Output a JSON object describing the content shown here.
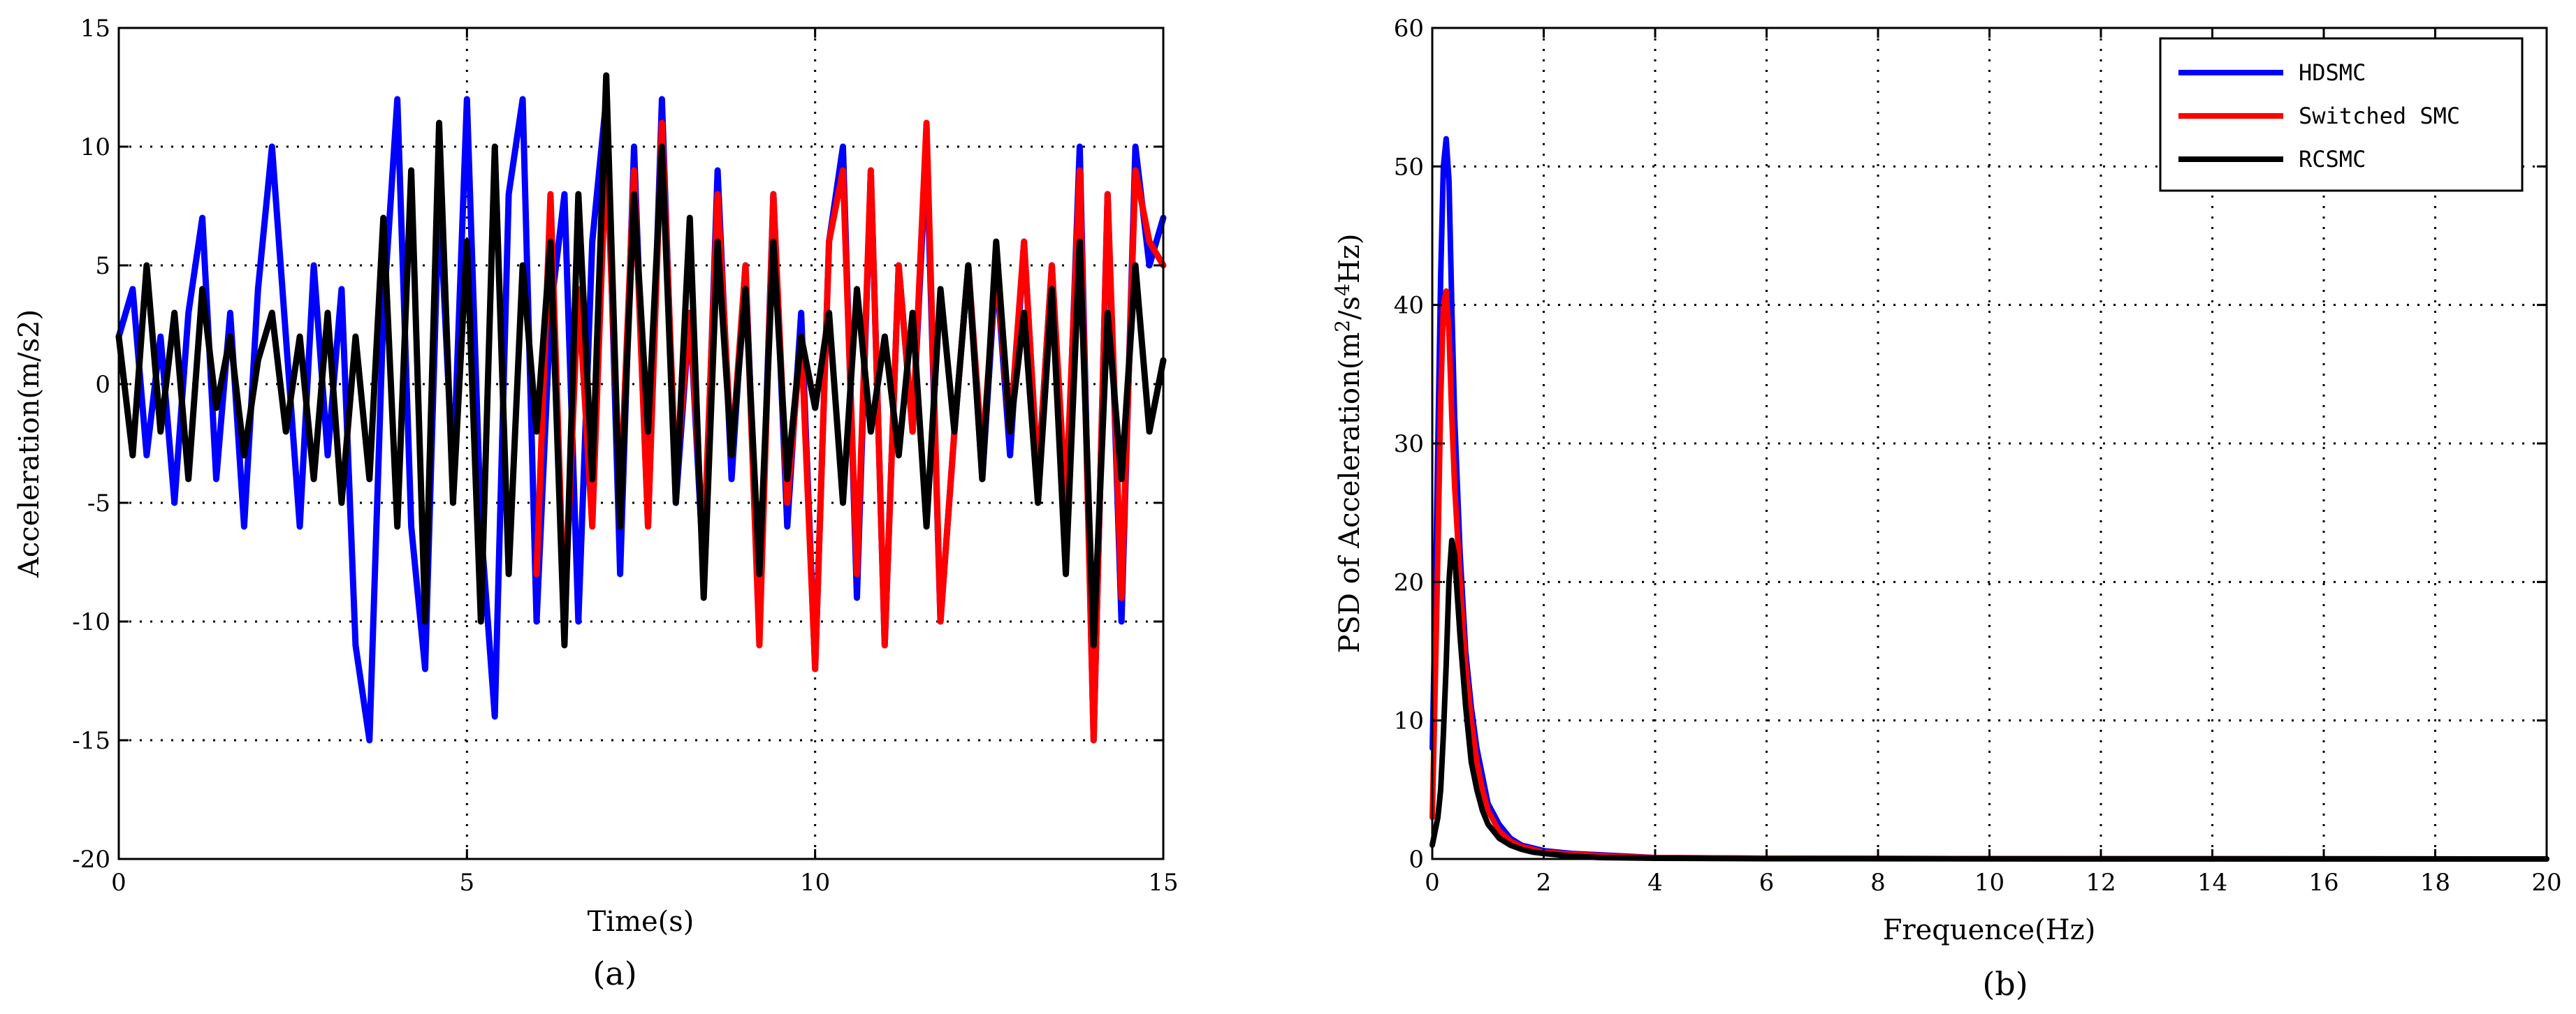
{
  "chart_data": [
    {
      "id": "a",
      "type": "line",
      "caption": "(a)",
      "xlabel": "Time(s)",
      "ylabel": "Acceleration(m/s2)",
      "xlim": [
        0,
        15
      ],
      "ylim": [
        -20,
        15
      ],
      "xticks": [
        0,
        5,
        10,
        15
      ],
      "yticks": [
        -20,
        -15,
        -10,
        -5,
        0,
        5,
        10,
        15
      ],
      "grid": true,
      "series": [
        {
          "name": "HDSMC",
          "color": "#0000ff",
          "x": [
            0,
            0.2,
            0.4,
            0.6,
            0.8,
            1.0,
            1.2,
            1.4,
            1.6,
            1.8,
            2.0,
            2.2,
            2.4,
            2.6,
            2.8,
            3.0,
            3.2,
            3.4,
            3.6,
            3.8,
            4.0,
            4.2,
            4.4,
            4.6,
            4.8,
            5.0,
            5.2,
            5.4,
            5.6,
            5.8,
            6.0,
            6.2,
            6.4,
            6.6,
            6.8,
            7.0,
            7.2,
            7.4,
            7.6,
            7.8,
            8.0,
            8.2,
            8.4,
            8.6,
            8.8,
            9.0,
            9.2,
            9.4,
            9.6,
            9.8,
            10.0,
            10.2,
            10.4,
            10.6,
            10.8,
            11.0,
            11.2,
            11.4,
            11.6,
            11.8,
            12.0,
            12.2,
            12.4,
            12.6,
            12.8,
            13.0,
            13.2,
            13.4,
            13.6,
            13.8,
            14.0,
            14.2,
            14.4,
            14.6,
            14.8,
            15.0
          ],
          "y": [
            2,
            4,
            -3,
            2,
            -5,
            3,
            7,
            -4,
            3,
            -6,
            4,
            10,
            2,
            -6,
            5,
            -3,
            4,
            -11,
            -15,
            3,
            12,
            -6,
            -12,
            8,
            -4,
            12,
            -6,
            -14,
            8,
            12,
            -10,
            3,
            8,
            -10,
            6,
            12,
            -8,
            10,
            -6,
            12,
            -5,
            3,
            -8,
            9,
            -4,
            5,
            -10,
            8,
            -6,
            3,
            -12,
            6,
            10,
            -9,
            9,
            -11,
            5,
            -2,
            10,
            -10,
            -2,
            5,
            -4,
            5,
            -3,
            6,
            -4,
            5,
            -6,
            10,
            -15,
            8,
            -10,
            10,
            5,
            7
          ]
        },
        {
          "name": "Switched SMC",
          "color": "#ff0000",
          "x": [
            6.0,
            6.2,
            6.4,
            6.6,
            6.8,
            7.0,
            7.2,
            7.4,
            7.6,
            7.8,
            8.0,
            8.2,
            8.4,
            8.6,
            8.8,
            9.0,
            9.2,
            9.4,
            9.6,
            9.8,
            10.0,
            10.2,
            10.4,
            10.6,
            10.8,
            11.0,
            11.2,
            11.4,
            11.6,
            11.8,
            12.0,
            12.2,
            12.4,
            12.6,
            12.8,
            13.0,
            13.2,
            13.4,
            13.6,
            13.8,
            14.0,
            14.2,
            14.4,
            14.6,
            14.8,
            15.0
          ],
          "y": [
            -8,
            8,
            -10,
            4,
            -6,
            10,
            -5,
            9,
            -6,
            11,
            -4,
            3,
            -7,
            8,
            -3,
            5,
            -11,
            8,
            -5,
            2,
            -12,
            6,
            9,
            -8,
            9,
            -11,
            5,
            -2,
            11,
            -10,
            -2,
            5,
            -3,
            5,
            -2,
            6,
            -4,
            5,
            -5,
            9,
            -15,
            8,
            -9,
            9,
            6,
            5
          ]
        },
        {
          "name": "RCSMC",
          "color": "#000000",
          "x": [
            0,
            0.2,
            0.4,
            0.6,
            0.8,
            1.0,
            1.2,
            1.4,
            1.6,
            1.8,
            2.0,
            2.2,
            2.4,
            2.6,
            2.8,
            3.0,
            3.2,
            3.4,
            3.6,
            3.8,
            4.0,
            4.2,
            4.4,
            4.6,
            4.8,
            5.0,
            5.2,
            5.4,
            5.6,
            5.8,
            6.0,
            6.2,
            6.4,
            6.6,
            6.8,
            7.0,
            7.2,
            7.4,
            7.6,
            7.8,
            8.0,
            8.2,
            8.4,
            8.6,
            8.8,
            9.0,
            9.2,
            9.4,
            9.6,
            9.8,
            10.0,
            10.2,
            10.4,
            10.6,
            10.8,
            11.0,
            11.2,
            11.4,
            11.6,
            11.8,
            12.0,
            12.2,
            12.4,
            12.6,
            12.8,
            13.0,
            13.2,
            13.4,
            13.6,
            13.8,
            14.0,
            14.2,
            14.4,
            14.6,
            14.8,
            15.0
          ],
          "y": [
            2,
            -3,
            5,
            -2,
            3,
            -4,
            4,
            -1,
            2,
            -3,
            1,
            3,
            -2,
            2,
            -4,
            3,
            -5,
            2,
            -4,
            7,
            -6,
            9,
            -10,
            11,
            -5,
            6,
            -10,
            10,
            -8,
            5,
            -2,
            6,
            -11,
            8,
            -4,
            13,
            -6,
            8,
            -2,
            10,
            -5,
            7,
            -9,
            6,
            -3,
            4,
            -8,
            6,
            -4,
            2,
            -1,
            3,
            -5,
            4,
            -2,
            2,
            -3,
            3,
            -6,
            4,
            -2,
            5,
            -4,
            6,
            -2,
            3,
            -5,
            4,
            -8,
            6,
            -11,
            3,
            -4,
            5,
            -2,
            1
          ]
        }
      ]
    },
    {
      "id": "b",
      "type": "line",
      "caption": "(b)",
      "xlabel": "Frequence(Hz)",
      "ylabel_prefix": "PSD of Acceleration(m",
      "ylabel_sup1": "2",
      "ylabel_mid": "/s",
      "ylabel_sup2": "4",
      "ylabel_suffix": "Hz)",
      "xlim": [
        0,
        20
      ],
      "ylim": [
        0,
        60
      ],
      "xticks": [
        0,
        2,
        4,
        6,
        8,
        10,
        12,
        14,
        16,
        18,
        20
      ],
      "yticks": [
        0,
        10,
        20,
        30,
        40,
        50,
        60
      ],
      "grid": true,
      "legend": "top-right",
      "series": [
        {
          "name": "HDSMC",
          "color": "#0000ff",
          "x": [
            0,
            0.05,
            0.1,
            0.15,
            0.2,
            0.25,
            0.3,
            0.35,
            0.4,
            0.5,
            0.6,
            0.7,
            0.8,
            0.9,
            1.0,
            1.2,
            1.4,
            1.6,
            1.8,
            2.0,
            2.5,
            3.0,
            3.5,
            4.0,
            6,
            10,
            20
          ],
          "y": [
            8,
            18,
            30,
            42,
            50,
            52,
            49,
            40,
            32,
            22,
            15,
            11,
            8,
            6,
            4,
            2.5,
            1.5,
            1,
            0.8,
            0.6,
            0.4,
            0.3,
            0.2,
            0.1,
            0.05,
            0.02,
            0
          ]
        },
        {
          "name": "Switched SMC",
          "color": "#ff0000",
          "x": [
            0,
            0.05,
            0.1,
            0.15,
            0.2,
            0.25,
            0.3,
            0.35,
            0.4,
            0.5,
            0.6,
            0.7,
            0.8,
            0.9,
            1.0,
            1.2,
            1.4,
            1.6,
            1.8,
            2.0,
            2.5,
            3.0,
            3.5,
            4.0,
            6,
            10,
            20
          ],
          "y": [
            3,
            12,
            22,
            33,
            40,
            41,
            38,
            32,
            27,
            20,
            14,
            10,
            7,
            5,
            3.5,
            2,
            1.3,
            0.9,
            0.7,
            0.5,
            0.35,
            0.25,
            0.15,
            0.1,
            0.05,
            0.02,
            0
          ]
        },
        {
          "name": "RCSMC",
          "color": "#000000",
          "x": [
            0,
            0.05,
            0.1,
            0.15,
            0.2,
            0.25,
            0.3,
            0.35,
            0.4,
            0.45,
            0.5,
            0.6,
            0.7,
            0.8,
            0.9,
            1.0,
            1.2,
            1.4,
            1.6,
            1.8,
            2.0,
            2.5,
            3.0,
            4.0,
            6,
            10,
            20
          ],
          "y": [
            1,
            2,
            3,
            5,
            9,
            14,
            20,
            23,
            22,
            19,
            16,
            11,
            7,
            5,
            3.5,
            2.5,
            1.5,
            1,
            0.7,
            0.5,
            0.4,
            0.2,
            0.1,
            0.05,
            0.02,
            0.01,
            0
          ]
        }
      ]
    }
  ]
}
